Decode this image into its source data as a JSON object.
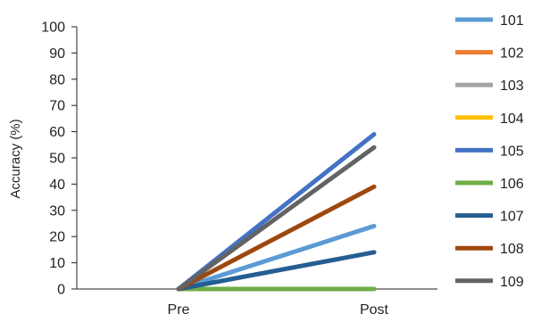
{
  "chart_data": {
    "type": "line",
    "title": "",
    "xlabel": "",
    "ylabel": "Accuracy (%)",
    "categories": [
      "Pre",
      "Post"
    ],
    "ylim": [
      0,
      100
    ],
    "yticks": [
      0,
      10,
      20,
      30,
      40,
      50,
      60,
      70,
      80,
      90,
      100
    ],
    "grid": false,
    "legend_position": "right",
    "series": [
      {
        "name": "101",
        "color": "#5b9bd5",
        "values": [
          0,
          24
        ]
      },
      {
        "name": "102",
        "color": "#ed7d31",
        "values": [
          0,
          0
        ]
      },
      {
        "name": "103",
        "color": "#a5a5a5",
        "values": [
          0,
          0
        ]
      },
      {
        "name": "104",
        "color": "#ffc000",
        "values": [
          0,
          0
        ]
      },
      {
        "name": "105",
        "color": "#4472c4",
        "values": [
          0,
          59
        ]
      },
      {
        "name": "106",
        "color": "#70ad47",
        "values": [
          0,
          0
        ]
      },
      {
        "name": "107",
        "color": "#255e91",
        "values": [
          0,
          14
        ]
      },
      {
        "name": "108",
        "color": "#9e480e",
        "values": [
          0,
          39
        ]
      },
      {
        "name": "109",
        "color": "#636363",
        "values": [
          0,
          54
        ]
      }
    ]
  }
}
